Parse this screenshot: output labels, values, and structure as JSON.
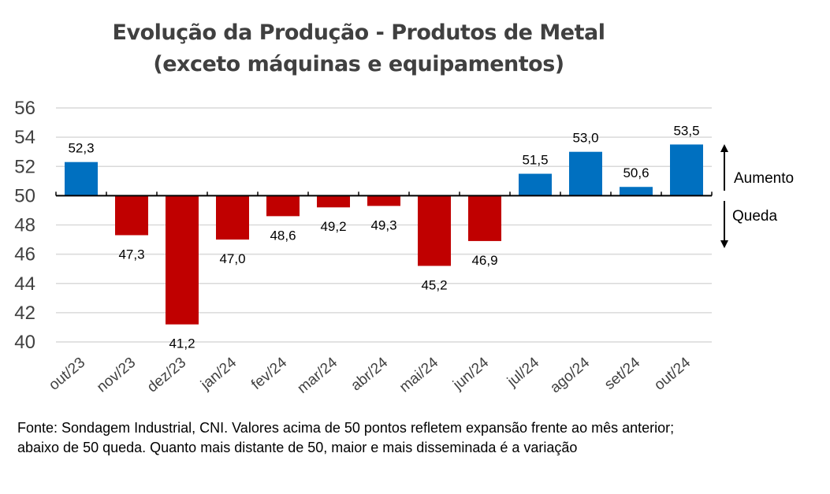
{
  "chart_data": {
    "type": "bar",
    "title": [
      "Evolução da Produção - Produtos de Metal",
      "(exceto máquinas e equipamentos)"
    ],
    "categories": [
      "out/23",
      "nov/23",
      "dez/23",
      "jan/24",
      "fev/24",
      "mar/24",
      "abr/24",
      "mai/24",
      "jun/24",
      "jul/24",
      "ago/24",
      "set/24",
      "out/24"
    ],
    "values": [
      52.3,
      47.3,
      41.2,
      47.0,
      48.6,
      49.2,
      49.3,
      45.2,
      46.9,
      51.5,
      53.0,
      50.6,
      53.5
    ],
    "labels": [
      "52,3",
      "47,3",
      "41,2",
      "47,0",
      "48,6",
      "49,2",
      "49,3",
      "45,2",
      "46,9",
      "51,5",
      "53,0",
      "50,6",
      "53,5"
    ],
    "baseline": 50,
    "ylim": [
      40,
      56
    ],
    "yticks": [
      "40",
      "42",
      "44",
      "46",
      "48",
      "50",
      "52",
      "54",
      "56"
    ],
    "grid": true,
    "xlabel": "",
    "ylabel": "",
    "annotations": {
      "up": "Aumento",
      "down": "Queda"
    },
    "colors": {
      "above": "#0070C0",
      "below": "#C00000",
      "grid": "#D9D9D9",
      "axis": "#000000"
    }
  },
  "footnote": "Fonte: Sondagem Industrial, CNI. Valores acima de 50 pontos refletem expansão frente ao mês anterior; abaixo de 50 queda. Quanto mais distante de 50, maior e mais disseminada é a variação"
}
